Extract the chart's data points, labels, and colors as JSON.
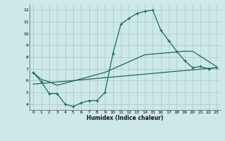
{
  "xlabel": "Humidex (Indice chaleur)",
  "bg_color": "#cce8e8",
  "grid_color": "#b0cccc",
  "line_color": "#1a6b5a",
  "xlim": [
    -0.5,
    23.5
  ],
  "ylim": [
    3.5,
    12.5
  ],
  "xticks": [
    0,
    1,
    2,
    3,
    4,
    5,
    6,
    7,
    8,
    9,
    10,
    11,
    12,
    13,
    14,
    15,
    16,
    17,
    18,
    19,
    20,
    21,
    22,
    23
  ],
  "yticks": [
    4,
    5,
    6,
    7,
    8,
    9,
    10,
    11,
    12
  ],
  "line1_x": [
    0,
    1,
    2,
    3,
    4,
    5,
    6,
    7,
    8,
    9,
    10,
    11,
    12,
    13,
    14,
    15,
    16,
    17,
    18,
    19,
    20,
    21,
    22,
    23
  ],
  "line1_y": [
    6.7,
    5.9,
    4.9,
    4.9,
    4.0,
    3.8,
    4.1,
    4.3,
    4.3,
    5.0,
    8.3,
    10.8,
    11.3,
    11.7,
    11.9,
    12.0,
    10.3,
    9.4,
    8.5,
    7.7,
    7.1,
    7.2,
    7.0,
    7.1
  ],
  "line2_x": [
    0,
    1,
    2,
    3,
    9,
    14,
    19,
    20,
    23
  ],
  "line2_y": [
    6.7,
    6.1,
    5.9,
    5.6,
    6.7,
    8.2,
    8.5,
    8.5,
    7.2
  ],
  "line3_x": [
    0,
    23
  ],
  "line3_y": [
    5.7,
    7.1
  ]
}
